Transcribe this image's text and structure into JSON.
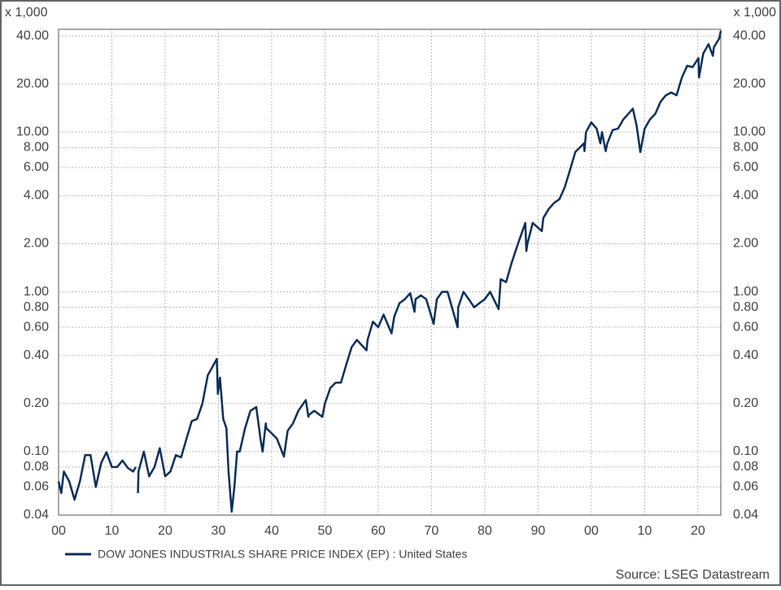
{
  "chart_data": {
    "type": "line",
    "y_unit": "x 1,000",
    "source": "Source: LSEG Datastream",
    "log_y": true,
    "grid": true,
    "legend": "bottom-left",
    "xlim": [
      1900,
      2024.3
    ],
    "ylim": [
      0.04,
      44
    ],
    "xticks": [
      {
        "value": 1900,
        "label": "00"
      },
      {
        "value": 1910,
        "label": "10"
      },
      {
        "value": 1920,
        "label": "20"
      },
      {
        "value": 1930,
        "label": "30"
      },
      {
        "value": 1940,
        "label": "40"
      },
      {
        "value": 1950,
        "label": "50"
      },
      {
        "value": 1960,
        "label": "60"
      },
      {
        "value": 1970,
        "label": "70"
      },
      {
        "value": 1980,
        "label": "80"
      },
      {
        "value": 1990,
        "label": "90"
      },
      {
        "value": 2000,
        "label": "00"
      },
      {
        "value": 2010,
        "label": "10"
      },
      {
        "value": 2020,
        "label": "20"
      }
    ],
    "yticks": [
      0.04,
      0.06,
      0.08,
      {
        "value": 0.1,
        "label": "0.10"
      },
      {
        "value": 0.2,
        "label": "0.20"
      },
      {
        "value": 0.4,
        "label": "0.40"
      },
      {
        "value": 0.6,
        "label": "0.60"
      },
      {
        "value": 0.8,
        "label": "0.80"
      },
      {
        "value": 1,
        "label": "1.00"
      },
      {
        "value": 2,
        "label": "2.00"
      },
      {
        "value": 4,
        "label": "4.00"
      },
      {
        "value": 6,
        "label": "6.00"
      },
      {
        "value": 8,
        "label": "8.00"
      },
      {
        "value": 10,
        "label": "10.00"
      },
      {
        "value": 20,
        "label": "20.00"
      },
      {
        "value": 40,
        "label": "40.00"
      }
    ],
    "x": [
      1900,
      1900.5,
      1901,
      1902,
      1903,
      1904,
      1905,
      1906,
      1907,
      1908,
      1909,
      1910,
      1911,
      1912,
      1913,
      1914,
      1914.5,
      1914.7,
      1914.9,
      1915,
      1916,
      1917,
      1918,
      1919,
      1920,
      1921,
      1922,
      1923,
      1924,
      1925,
      1926,
      1927,
      1928,
      1929.7,
      1929.9,
      1930.3,
      1930.9,
      1931.5,
      1931.9,
      1932.5,
      1933,
      1933.5,
      1934,
      1935,
      1936,
      1937.1,
      1937.9,
      1938.3,
      1938.9,
      1939,
      1940,
      1941,
      1942.3,
      1943,
      1944,
      1945,
      1946.4,
      1946.9,
      1947,
      1948,
      1949.5,
      1950,
      1951,
      1952,
      1953,
      1954,
      1955,
      1956,
      1957.8,
      1958,
      1959,
      1960,
      1961,
      1962.5,
      1963,
      1964,
      1965,
      1966,
      1966.8,
      1967,
      1968,
      1969,
      1970.4,
      1971,
      1972,
      1973,
      1974.9,
      1975,
      1976,
      1977,
      1978,
      1979,
      1980,
      1981,
      1982.6,
      1983,
      1984,
      1985,
      1986,
      1987.6,
      1987.8,
      1988,
      1989,
      1990.7,
      1991,
      1992,
      1993,
      1994,
      1995,
      1996,
      1997,
      1998.6,
      1998.7,
      1999,
      2000,
      2001,
      2001.7,
      2002,
      2002.7,
      2003,
      2004,
      2005,
      2006,
      2007.8,
      2008.5,
      2009.2,
      2010,
      2011,
      2012,
      2013,
      2014,
      2015,
      2016,
      2017,
      2018,
      2019,
      2020.1,
      2020.2,
      2021,
      2022,
      2022.8,
      2023,
      2024,
      2024.3
    ],
    "series": [
      {
        "name": "DOW JONES INDUSTRIALS SHARE PRICE INDEX (EP) : United States",
        "color": "#0b2f5a",
        "values": [
          0.065,
          0.055,
          0.075,
          0.065,
          0.05,
          0.065,
          0.095,
          0.095,
          0.06,
          0.085,
          0.099,
          0.08,
          0.08,
          0.088,
          0.079,
          0.075,
          0.08,
          null,
          0.055,
          0.075,
          0.1,
          0.07,
          0.08,
          0.105,
          0.07,
          0.075,
          0.095,
          0.092,
          0.12,
          0.155,
          0.16,
          0.2,
          0.3,
          0.38,
          0.23,
          0.29,
          0.16,
          0.14,
          0.075,
          0.042,
          0.06,
          0.1,
          0.1,
          0.14,
          0.18,
          0.19,
          0.12,
          0.1,
          0.15,
          0.14,
          0.13,
          0.12,
          0.093,
          0.135,
          0.15,
          0.18,
          0.21,
          0.165,
          0.17,
          0.18,
          0.165,
          0.2,
          0.25,
          0.27,
          0.27,
          0.35,
          0.45,
          0.5,
          0.43,
          0.5,
          0.65,
          0.6,
          0.72,
          0.55,
          0.7,
          0.85,
          0.9,
          0.98,
          0.75,
          0.9,
          0.95,
          0.9,
          0.63,
          0.9,
          1.0,
          1.0,
          0.6,
          0.8,
          1.0,
          0.9,
          0.8,
          0.85,
          0.9,
          1.0,
          0.78,
          1.2,
          1.15,
          1.5,
          1.9,
          2.7,
          1.8,
          2.0,
          2.7,
          2.4,
          2.9,
          3.3,
          3.6,
          3.8,
          4.5,
          5.8,
          7.5,
          8.5,
          7.6,
          10,
          11.5,
          10.5,
          8.5,
          10,
          7.6,
          8.5,
          10.3,
          10.5,
          12,
          14,
          11,
          7.5,
          10.5,
          12,
          13,
          15.5,
          17,
          17.7,
          17,
          22,
          26,
          25.5,
          29,
          22,
          31,
          35.5,
          30,
          34,
          38.5,
          43
        ]
      }
    ]
  }
}
